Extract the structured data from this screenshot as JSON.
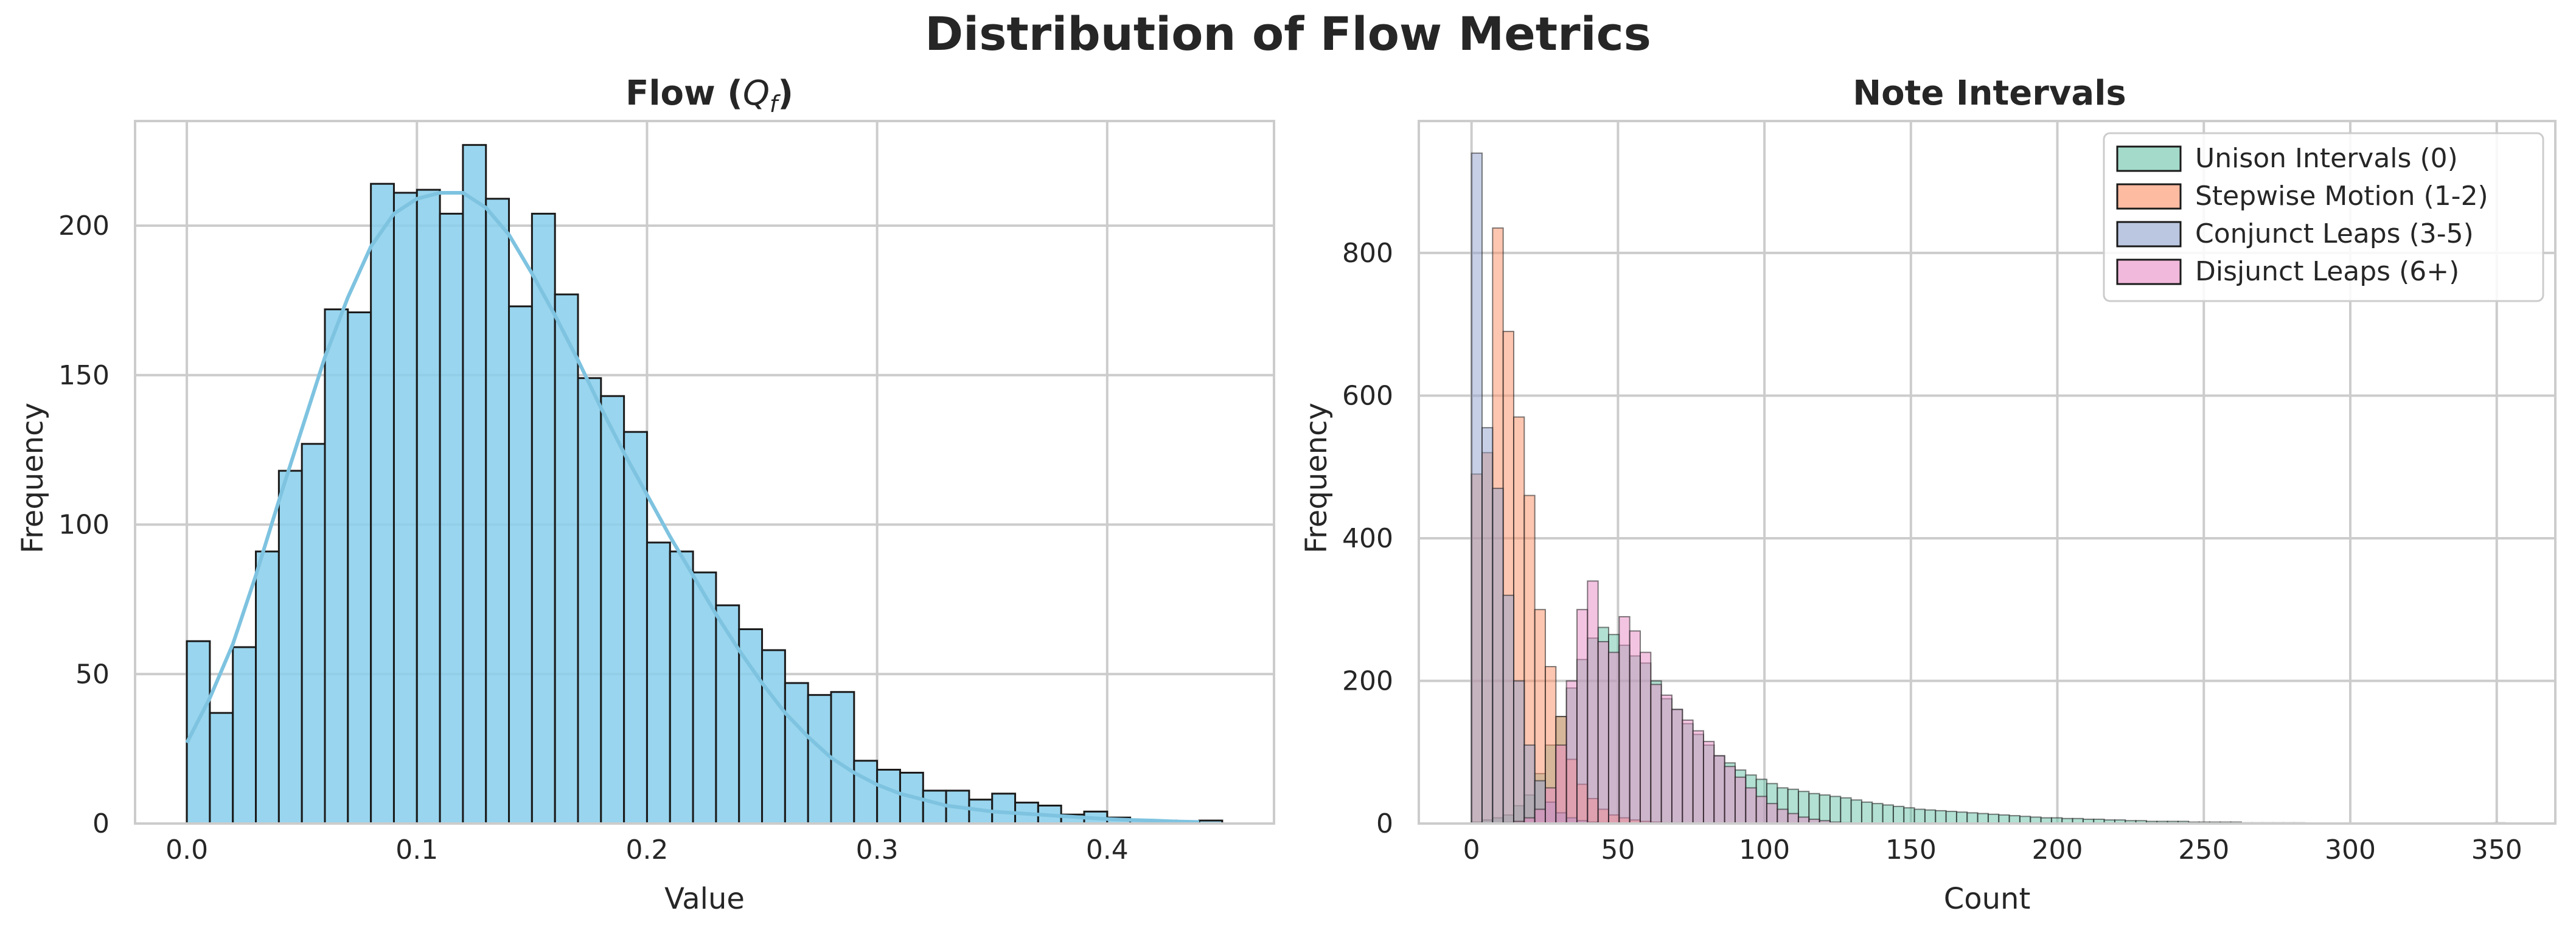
{
  "figure": {
    "suptitle": "Distribution of Flow Metrics"
  },
  "chart_data": [
    {
      "type": "bar",
      "subtype": "histogram_with_kde",
      "title": "Flow (Q_f)",
      "title_display": {
        "main": "Flow (",
        "var": "Q",
        "sub": "f",
        "end": ")"
      },
      "xlabel": "Value",
      "ylabel": "Frequency",
      "xlim": [
        -0.0225,
        0.4725
      ],
      "ylim": [
        0,
        235
      ],
      "xticks": [
        0.0,
        0.1,
        0.2,
        0.3,
        0.4
      ],
      "xtick_labels": [
        "0.0",
        "0.1",
        "0.2",
        "0.3",
        "0.4"
      ],
      "yticks": [
        0,
        50,
        100,
        150,
        200
      ],
      "ytick_labels": [
        "0",
        "50",
        "100",
        "150",
        "200"
      ],
      "grid": true,
      "color": "#87CEEB",
      "kde_color": "#7EC3E0",
      "bin_start": 0.0,
      "bin_width": 0.01,
      "values": [
        61,
        37,
        59,
        91,
        118,
        127,
        172,
        171,
        214,
        211,
        212,
        204,
        227,
        209,
        173,
        204,
        177,
        149,
        143,
        131,
        94,
        91,
        84,
        73,
        65,
        58,
        47,
        43,
        44,
        21,
        18,
        17,
        11,
        11,
        8,
        10,
        7,
        6,
        3,
        4,
        2,
        1,
        1,
        0,
        1
      ],
      "kde": {
        "x": [
          0.0,
          0.01,
          0.02,
          0.03,
          0.04,
          0.05,
          0.06,
          0.07,
          0.08,
          0.09,
          0.1,
          0.11,
          0.12,
          0.13,
          0.14,
          0.15,
          0.16,
          0.17,
          0.18,
          0.19,
          0.2,
          0.21,
          0.22,
          0.23,
          0.24,
          0.25,
          0.26,
          0.27,
          0.28,
          0.29,
          0.3,
          0.31,
          0.32,
          0.33,
          0.34,
          0.35,
          0.36,
          0.37,
          0.38,
          0.39,
          0.4,
          0.41,
          0.42,
          0.43,
          0.44
        ],
        "y": [
          27,
          42,
          60,
          83,
          108,
          132,
          156,
          176,
          193,
          204,
          209,
          211,
          211,
          206,
          197,
          184,
          170,
          155,
          139,
          124,
          110,
          96,
          83,
          70,
          58,
          47,
          37,
          29,
          22,
          17,
          13,
          10,
          8,
          6,
          5,
          4,
          3.5,
          3,
          2.5,
          2,
          1.5,
          1.2,
          1,
          0.7,
          0.5
        ]
      }
    },
    {
      "type": "bar",
      "subtype": "overlaid_histogram",
      "title": "Note Intervals",
      "xlabel": "Count",
      "ylabel": "Frequency",
      "xlim": [
        -18,
        370
      ],
      "ylim": [
        0,
        985
      ],
      "xticks": [
        0,
        50,
        100,
        150,
        200,
        250,
        300,
        350
      ],
      "xtick_labels": [
        "0",
        "50",
        "100",
        "150",
        "200",
        "250",
        "300",
        "350"
      ],
      "yticks": [
        0,
        200,
        400,
        600,
        800
      ],
      "ytick_labels": [
        "0",
        "200",
        "400",
        "600",
        "800"
      ],
      "grid": true,
      "legend_position": "top-right",
      "bin_width": 3.6,
      "series": [
        {
          "name": "Unison Intervals (0)",
          "color": "#66C2A5",
          "bin_start": 0,
          "values": [
            2,
            5,
            8,
            12,
            25,
            40,
            70,
            110,
            150,
            190,
            230,
            260,
            275,
            265,
            250,
            235,
            225,
            200,
            175,
            160,
            140,
            125,
            110,
            95,
            85,
            75,
            68,
            62,
            56,
            50,
            48,
            45,
            42,
            40,
            38,
            36,
            33,
            30,
            28,
            26,
            24,
            22,
            20,
            19,
            18,
            17,
            16,
            15,
            14,
            13,
            12,
            11,
            10,
            9,
            8,
            8,
            7,
            7,
            6,
            6,
            5,
            5,
            4,
            4,
            3,
            3,
            3,
            3,
            2,
            2,
            2,
            2,
            2,
            1,
            1,
            1,
            1,
            1,
            1,
            0,
            0,
            0,
            0,
            0,
            0,
            0,
            0,
            0,
            0,
            0,
            0,
            0,
            0,
            0,
            0,
            0,
            0,
            1
          ]
        },
        {
          "name": "Stepwise Motion (1-2)",
          "color": "#FC8D62",
          "bin_start": 0,
          "values": [
            490,
            520,
            835,
            690,
            570,
            460,
            300,
            220,
            150,
            90,
            55,
            35,
            20,
            12,
            8,
            5,
            3,
            2,
            1,
            1
          ]
        },
        {
          "name": "Conjunct Leaps (3-5)",
          "color": "#8DA0CB",
          "bin_start": 0,
          "values": [
            940,
            555,
            470,
            320,
            200,
            110,
            60,
            30,
            15,
            8,
            4,
            2,
            1
          ]
        },
        {
          "name": "Disjunct Leaps (6+)",
          "color": "#E78AC3",
          "bin_start": 0,
          "values": [
            0,
            0,
            0,
            1,
            3,
            8,
            20,
            50,
            110,
            200,
            300,
            340,
            255,
            240,
            290,
            270,
            240,
            195,
            180,
            160,
            145,
            130,
            115,
            95,
            80,
            65,
            50,
            38,
            28,
            20,
            14,
            9,
            6,
            4,
            2,
            1
          ]
        }
      ]
    }
  ]
}
